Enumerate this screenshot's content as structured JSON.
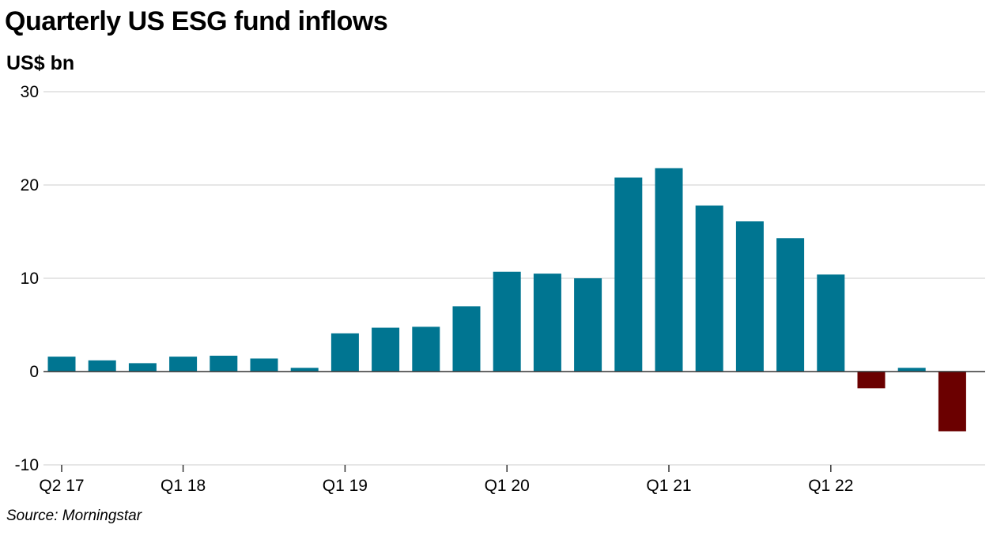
{
  "chart_data": {
    "type": "bar",
    "title": "Quarterly US ESG fund inflows",
    "ylabel": "US$ bn",
    "source": "Source: Morningstar",
    "ylim": [
      -10,
      30
    ],
    "yticks": [
      "30",
      "20",
      "10",
      "0",
      "-10"
    ],
    "grid": true,
    "x_tick_labels": [
      "Q2 17",
      "Q1 18",
      "Q1 19",
      "Q1 20",
      "Q1 21",
      "Q1 22"
    ],
    "categories": [
      "Q2 17",
      "Q3 17",
      "Q4 17",
      "Q1 18",
      "Q2 18",
      "Q3 18",
      "Q4 18",
      "Q1 19",
      "Q2 19",
      "Q3 19",
      "Q4 19",
      "Q1 20",
      "Q2 20",
      "Q3 20",
      "Q4 20",
      "Q1 21",
      "Q2 21",
      "Q3 21",
      "Q4 21",
      "Q1 22",
      "Q2 22",
      "Q3 22",
      "Q4 22"
    ],
    "values": [
      1.6,
      1.2,
      0.9,
      1.6,
      1.7,
      1.4,
      0.4,
      4.1,
      4.7,
      4.8,
      7.0,
      10.7,
      10.5,
      10.0,
      20.8,
      21.8,
      17.8,
      16.1,
      14.3,
      10.4,
      -1.8,
      0.4,
      -6.4
    ],
    "colors": {
      "positive": "#007591",
      "negative": "#6b0000",
      "grid": "#cccccc",
      "zero_line": "#333333"
    }
  }
}
